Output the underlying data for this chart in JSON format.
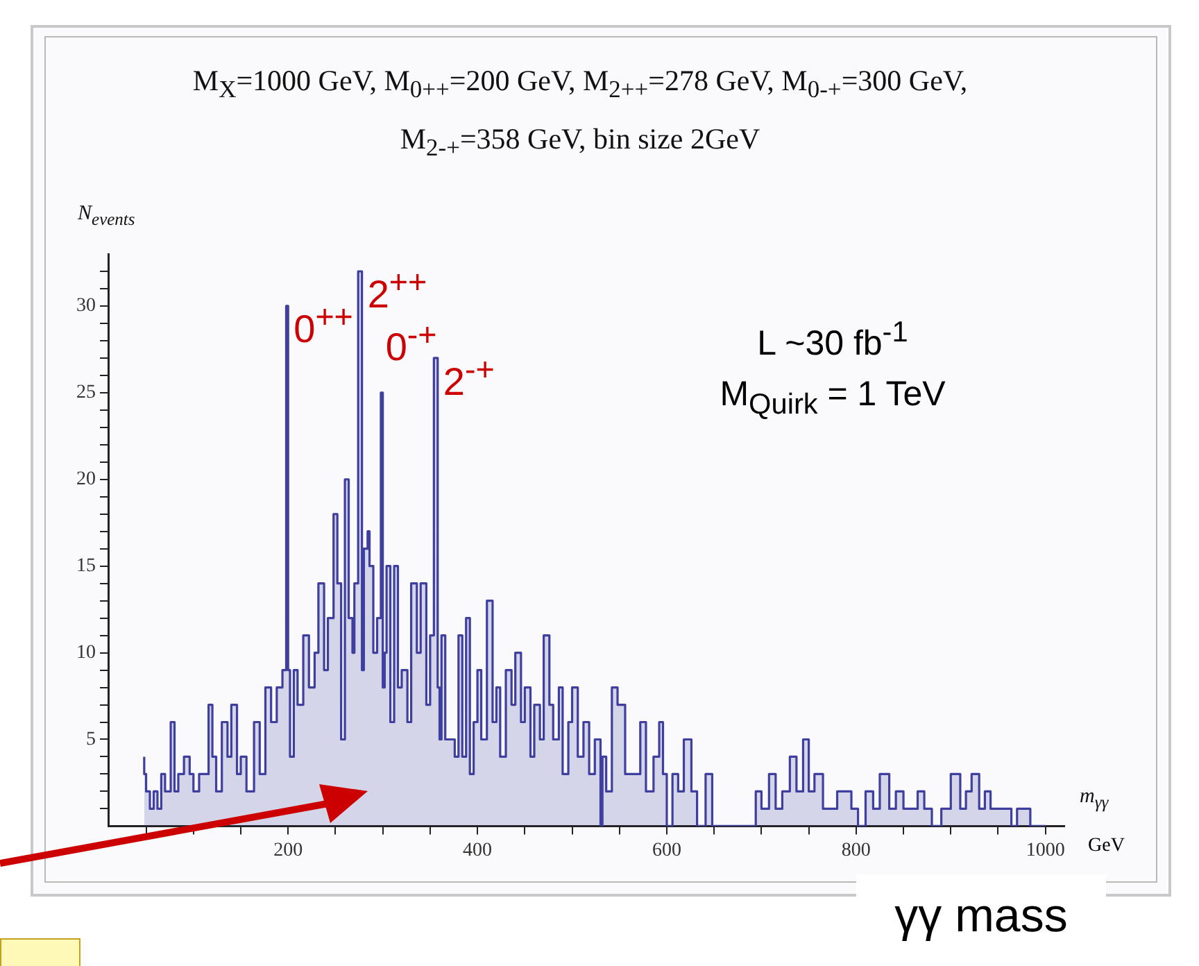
{
  "chart_data": {
    "type": "step",
    "title": "M$_{X}$=1000 GeV, M$_{0++}$=200 GeV, M$_{2++}$=278 GeV, M$_{0-+}$=300 GeV,",
    "subtitle": "M$_{2-+}$=358 GeV, bin size 2GeV",
    "xlabel": "m$_{γγ}$",
    "ylabel": "N$_{events}$",
    "annotations": [
      "L ~30 fb$^{-1}$",
      "M$_{Quirk}$ = 1 TeV",
      "GeV",
      "γγ mass",
      {
        "text": "0$^{++}$",
        "x": 200,
        "y": 30
      },
      {
        "text": "2$^{++}$",
        "x": 278,
        "y": 32
      },
      {
        "text": "0$^{-+}$",
        "x": 300,
        "y": 25
      },
      {
        "text": "2$^{-+}$",
        "x": 358,
        "y": 27
      }
    ],
    "series": [
      {
        "color": "#3f3f9f",
        "x": [
          48,
          50,
          54,
          58,
          62,
          66,
          70,
          76,
          80,
          84,
          90,
          96,
          100,
          106,
          110,
          116,
          120,
          124,
          130,
          136,
          140,
          146,
          150,
          156,
          164,
          170,
          176,
          182,
          188,
          194,
          198,
          200,
          202,
          206,
          210,
          216,
          222,
          228,
          232,
          238,
          242,
          248,
          252,
          256,
          260,
          264,
          268,
          270,
          274,
          278,
          280,
          284,
          286,
          290,
          294,
          298,
          300,
          302,
          304,
          308,
          312,
          316,
          320,
          326,
          330,
          336,
          340,
          346,
          350,
          354,
          358,
          360,
          362,
          366,
          370,
          376,
          380,
          384,
          388,
          392,
          396,
          400,
          404,
          410,
          416,
          420,
          424,
          430,
          436,
          440,
          446,
          450,
          456,
          460,
          466,
          470,
          476,
          480,
          486,
          490,
          496,
          500,
          506,
          512,
          518,
          524,
          530,
          532,
          536,
          542,
          548,
          556,
          572,
          578,
          586,
          592,
          596,
          600,
          606,
          612,
          618,
          626,
          632,
          641,
          648,
          694,
          700,
          708,
          715,
          722,
          730,
          737,
          744,
          750,
          756,
          765,
          772,
          780,
          788,
          795,
          802,
          810,
          818,
          825,
          835,
          842,
          850,
          865,
          872,
          880,
          890,
          900,
          910,
          916,
          922,
          930,
          936,
          942,
          948,
          964,
          970,
          978,
          984,
          990,
          1000
        ],
        "values": [
          4,
          3,
          2,
          1,
          2,
          1,
          3,
          2,
          6,
          2,
          3,
          4,
          3,
          2,
          3,
          3,
          7,
          4,
          2,
          6,
          4,
          7,
          3,
          4,
          2,
          6,
          3,
          8,
          6,
          8,
          9,
          30,
          9,
          4,
          9,
          7,
          11,
          8,
          10,
          14,
          9,
          12,
          18,
          14,
          5,
          20,
          12,
          10,
          14,
          32,
          9,
          16,
          17,
          15,
          10,
          12,
          25,
          8,
          10,
          15,
          6,
          15,
          8,
          9,
          6,
          14,
          10,
          14,
          7,
          11,
          27,
          8,
          5,
          11,
          5,
          5,
          4,
          11,
          4,
          12,
          3,
          6,
          9,
          5,
          13,
          6,
          8,
          4,
          9,
          7,
          10,
          6,
          8,
          4,
          7,
          5,
          11,
          7,
          5,
          8,
          3,
          6,
          8,
          4,
          6,
          3,
          5,
          0,
          4,
          2,
          8,
          7,
          3,
          6,
          2,
          4,
          6,
          3,
          0,
          3,
          2,
          5,
          2,
          0,
          3,
          0,
          2,
          1,
          3,
          1,
          2,
          4,
          2,
          5,
          2,
          3,
          1,
          1,
          2,
          2,
          1,
          0,
          2,
          1,
          3,
          1,
          2,
          1,
          2,
          1,
          0,
          1,
          3,
          1,
          2,
          3,
          1,
          2,
          1,
          1,
          0,
          1,
          1,
          0,
          0
        ]
      }
    ],
    "xlim": [
      10,
      1020
    ],
    "xticks": [
      {
        "value": 50,
        "label": null
      },
      {
        "value": 100,
        "label": null
      },
      {
        "value": 150,
        "label": null
      },
      200,
      {
        "value": 250,
        "label": null
      },
      {
        "value": 300,
        "label": null
      },
      {
        "value": 350,
        "label": null
      },
      400,
      {
        "value": 450,
        "label": null
      },
      {
        "value": 500,
        "label": null
      },
      {
        "value": 550,
        "label": null
      },
      600,
      {
        "value": 650,
        "label": null
      },
      {
        "value": 700,
        "label": null
      },
      {
        "value": 750,
        "label": null
      },
      800,
      {
        "value": 850,
        "label": null
      },
      {
        "value": 900,
        "label": null
      },
      {
        "value": 950,
        "label": null
      },
      1000
    ],
    "ylim": [
      0,
      33
    ],
    "yticks": [
      {
        "value": 1,
        "label": null
      },
      {
        "value": 2,
        "label": null
      },
      {
        "value": 3,
        "label": null
      },
      {
        "value": 4,
        "label": null
      },
      5,
      {
        "value": 6,
        "label": null
      },
      {
        "value": 7,
        "label": null
      },
      {
        "value": 8,
        "label": null
      },
      {
        "value": 9,
        "label": null
      },
      10,
      {
        "value": 11,
        "label": null
      },
      {
        "value": 12,
        "label": null
      },
      {
        "value": 13,
        "label": null
      },
      {
        "value": 14,
        "label": null
      },
      15,
      {
        "value": 16,
        "label": null
      },
      {
        "value": 17,
        "label": null
      },
      {
        "value": 18,
        "label": null
      },
      {
        "value": 19,
        "label": null
      },
      20,
      {
        "value": 21,
        "label": null
      },
      {
        "value": 22,
        "label": null
      },
      {
        "value": 23,
        "label": null
      },
      {
        "value": 24,
        "label": null
      },
      25,
      {
        "value": 26,
        "label": null
      },
      {
        "value": 27,
        "label": null
      },
      {
        "value": 28,
        "label": null
      },
      {
        "value": 29,
        "label": null
      },
      30,
      {
        "value": 31,
        "label": null
      },
      {
        "value": 32,
        "label": null
      }
    ]
  }
}
